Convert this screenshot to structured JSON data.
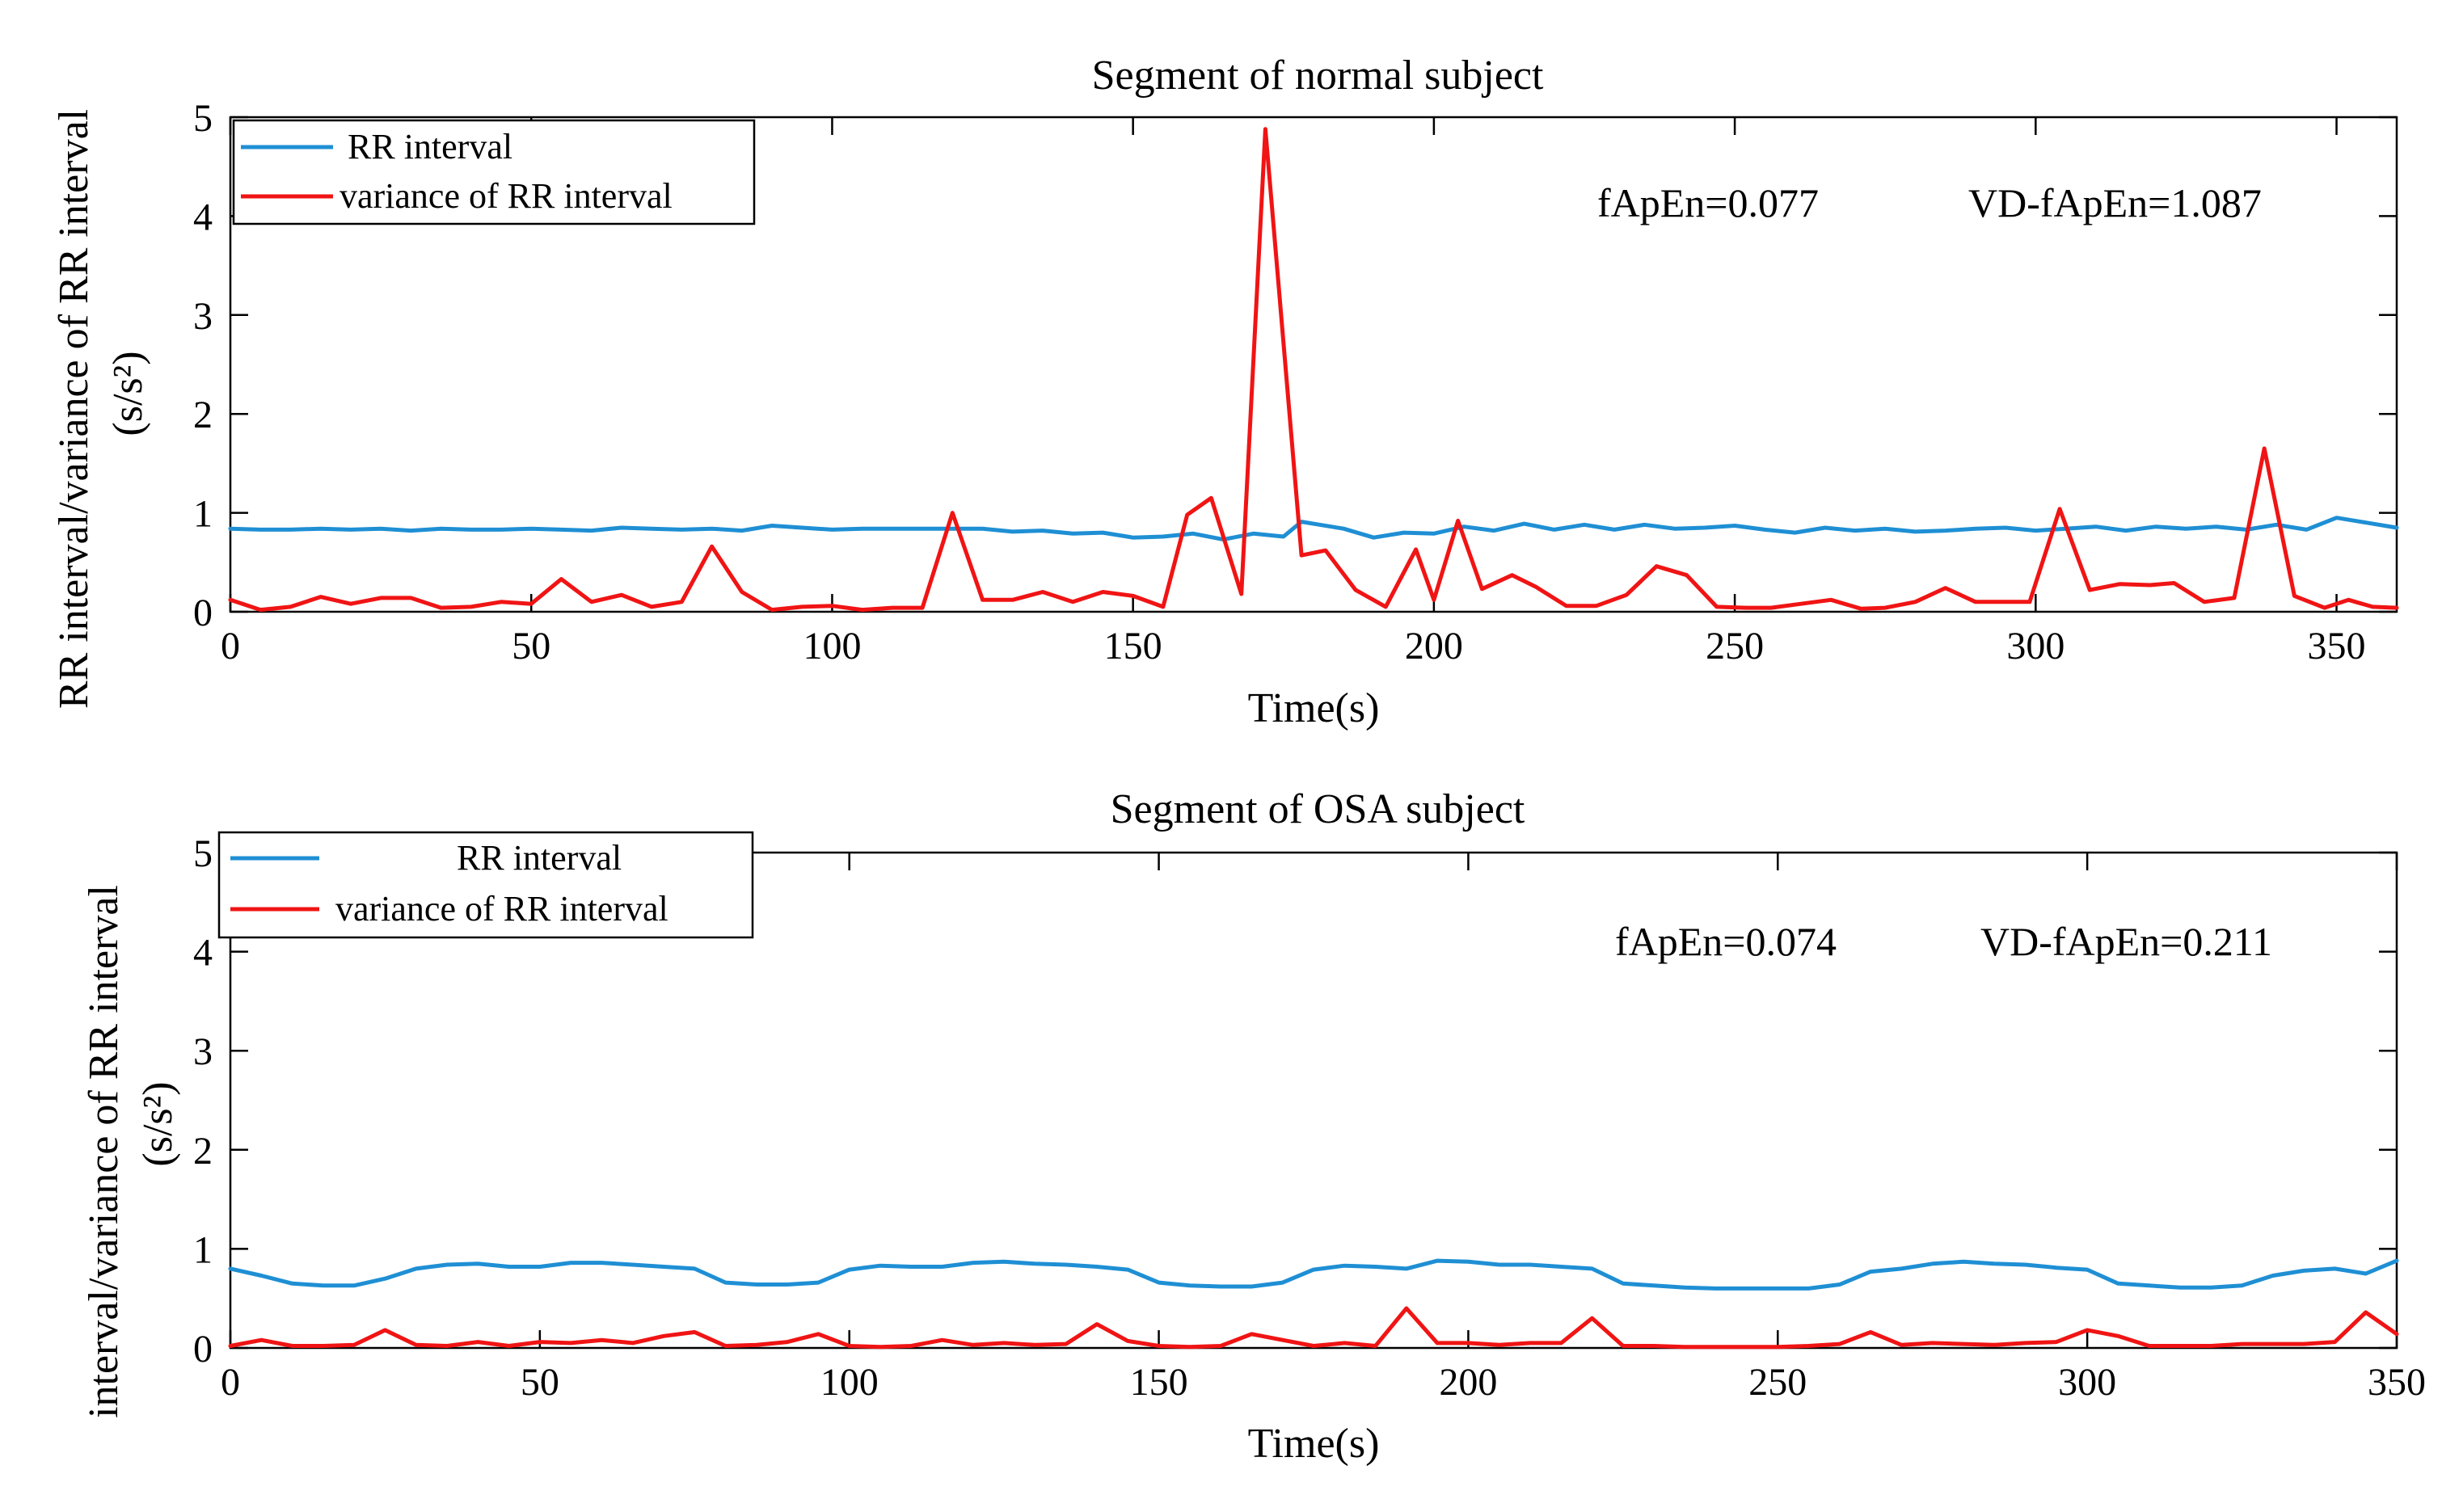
{
  "chart_data": [
    {
      "type": "line",
      "title": "Segment of normal subject",
      "xlabel": "Time(s)",
      "ylabel": "RR interval/variance of RR interval",
      "ylabel_unit": "(s/s²)",
      "xlim": [
        0,
        360
      ],
      "ylim": [
        0,
        5
      ],
      "xticks": [
        0,
        50,
        100,
        150,
        200,
        250,
        300,
        350
      ],
      "yticks": [
        0,
        1,
        2,
        3,
        4,
        5
      ],
      "legend_position": "top-left",
      "annotations": [
        "fApEn=0.077",
        "VD-fApEn=1.087"
      ],
      "colors": {
        "rr": "#1f8fd4",
        "var": "#f01414"
      },
      "series": [
        {
          "name": "RR interval",
          "x": [
            0,
            5,
            10,
            15,
            20,
            25,
            30,
            35,
            40,
            45,
            50,
            55,
            60,
            65,
            70,
            75,
            80,
            85,
            90,
            95,
            100,
            105,
            110,
            115,
            120,
            125,
            130,
            135,
            140,
            145,
            150,
            155,
            160,
            165,
            170,
            175,
            178,
            181,
            185,
            190,
            195,
            200,
            205,
            210,
            215,
            220,
            225,
            230,
            235,
            240,
            245,
            250,
            255,
            260,
            265,
            270,
            275,
            280,
            285,
            290,
            295,
            300,
            305,
            310,
            315,
            320,
            325,
            330,
            335,
            340,
            345,
            350,
            355,
            360
          ],
          "values": [
            0.84,
            0.83,
            0.83,
            0.84,
            0.83,
            0.84,
            0.82,
            0.84,
            0.83,
            0.83,
            0.84,
            0.83,
            0.82,
            0.85,
            0.84,
            0.83,
            0.84,
            0.82,
            0.87,
            0.85,
            0.83,
            0.84,
            0.84,
            0.84,
            0.84,
            0.84,
            0.81,
            0.82,
            0.79,
            0.8,
            0.75,
            0.76,
            0.79,
            0.73,
            0.79,
            0.76,
            0.91,
            0.88,
            0.84,
            0.75,
            0.8,
            0.79,
            0.86,
            0.82,
            0.89,
            0.83,
            0.88,
            0.83,
            0.88,
            0.84,
            0.85,
            0.87,
            0.83,
            0.8,
            0.85,
            0.82,
            0.84,
            0.81,
            0.82,
            0.84,
            0.85,
            0.82,
            0.84,
            0.86,
            0.82,
            0.86,
            0.84,
            0.86,
            0.83,
            0.88,
            0.83,
            0.95,
            0.9,
            0.85
          ]
        },
        {
          "name": "variance of RR interval",
          "x": [
            0,
            5,
            10,
            15,
            20,
            25,
            30,
            35,
            40,
            45,
            50,
            55,
            60,
            65,
            70,
            75,
            80,
            85,
            90,
            95,
            100,
            105,
            110,
            115,
            120,
            125,
            130,
            135,
            140,
            145,
            150,
            155,
            159,
            163,
            168,
            172,
            178,
            182,
            187,
            192,
            197,
            200,
            204,
            208,
            213,
            217,
            222,
            227,
            232,
            237,
            242,
            247,
            252,
            256,
            261,
            266,
            271,
            275,
            280,
            285,
            290,
            294,
            299,
            304,
            309,
            314,
            319,
            323,
            328,
            333,
            338,
            343,
            348,
            352,
            356,
            360
          ],
          "values": [
            0.12,
            0.02,
            0.05,
            0.15,
            0.08,
            0.14,
            0.14,
            0.04,
            0.05,
            0.1,
            0.08,
            0.33,
            0.1,
            0.17,
            0.05,
            0.1,
            0.66,
            0.2,
            0.02,
            0.05,
            0.06,
            0.02,
            0.04,
            0.04,
            1.0,
            0.12,
            0.12,
            0.2,
            0.1,
            0.2,
            0.16,
            0.05,
            0.98,
            1.15,
            0.18,
            4.88,
            0.57,
            0.62,
            0.22,
            0.05,
            0.63,
            0.12,
            0.92,
            0.23,
            0.37,
            0.25,
            0.06,
            0.06,
            0.17,
            0.46,
            0.37,
            0.05,
            0.04,
            0.04,
            0.08,
            0.12,
            0.03,
            0.04,
            0.1,
            0.24,
            0.1,
            0.1,
            0.1,
            1.04,
            0.22,
            0.28,
            0.27,
            0.29,
            0.1,
            0.14,
            1.65,
            0.16,
            0.04,
            0.12,
            0.05,
            0.04
          ]
        }
      ]
    },
    {
      "type": "line",
      "title": "Segment of OSA subject",
      "xlabel": "Time(s)",
      "ylabel": "interval/variance of RR interval",
      "ylabel_unit": "(s/s²)",
      "xlim": [
        0,
        350
      ],
      "ylim": [
        0,
        5
      ],
      "xticks": [
        0,
        50,
        100,
        150,
        200,
        250,
        300,
        350
      ],
      "yticks": [
        0,
        1,
        2,
        3,
        4,
        5
      ],
      "legend_position": "top-left",
      "annotations": [
        "fApEn=0.074",
        "VD-fApEn=0.211"
      ],
      "colors": {
        "rr": "#1f8fd4",
        "var": "#f01414"
      },
      "series": [
        {
          "name": "RR interval",
          "x": [
            0,
            5,
            10,
            15,
            20,
            25,
            30,
            35,
            40,
            45,
            50,
            55,
            60,
            65,
            70,
            75,
            80,
            85,
            90,
            95,
            100,
            105,
            110,
            115,
            120,
            125,
            130,
            135,
            140,
            145,
            150,
            155,
            160,
            165,
            170,
            175,
            180,
            185,
            190,
            195,
            200,
            205,
            210,
            215,
            220,
            225,
            230,
            235,
            240,
            245,
            250,
            255,
            260,
            265,
            270,
            275,
            280,
            285,
            290,
            295,
            300,
            305,
            310,
            315,
            320,
            325,
            330,
            335,
            340,
            345,
            350
          ],
          "values": [
            0.8,
            0.73,
            0.65,
            0.63,
            0.63,
            0.7,
            0.8,
            0.84,
            0.85,
            0.82,
            0.82,
            0.86,
            0.86,
            0.84,
            0.82,
            0.8,
            0.66,
            0.64,
            0.64,
            0.66,
            0.79,
            0.83,
            0.82,
            0.82,
            0.86,
            0.87,
            0.85,
            0.84,
            0.82,
            0.79,
            0.66,
            0.63,
            0.62,
            0.62,
            0.66,
            0.79,
            0.83,
            0.82,
            0.8,
            0.88,
            0.87,
            0.84,
            0.84,
            0.82,
            0.8,
            0.65,
            0.63,
            0.61,
            0.6,
            0.6,
            0.6,
            0.6,
            0.64,
            0.77,
            0.8,
            0.85,
            0.87,
            0.85,
            0.84,
            0.81,
            0.79,
            0.65,
            0.63,
            0.61,
            0.61,
            0.63,
            0.73,
            0.78,
            0.8,
            0.75,
            0.88
          ]
        },
        {
          "name": "variance of RR interval",
          "x": [
            0,
            5,
            10,
            15,
            20,
            25,
            30,
            35,
            40,
            45,
            50,
            55,
            60,
            65,
            70,
            75,
            80,
            85,
            90,
            95,
            100,
            105,
            110,
            115,
            120,
            125,
            130,
            135,
            140,
            145,
            150,
            155,
            160,
            165,
            170,
            175,
            180,
            185,
            190,
            195,
            200,
            205,
            210,
            215,
            220,
            225,
            230,
            235,
            240,
            245,
            250,
            255,
            260,
            265,
            270,
            275,
            280,
            285,
            290,
            295,
            300,
            305,
            310,
            315,
            320,
            325,
            330,
            335,
            340,
            345,
            350
          ],
          "values": [
            0.02,
            0.08,
            0.02,
            0.02,
            0.03,
            0.18,
            0.03,
            0.02,
            0.06,
            0.02,
            0.06,
            0.05,
            0.08,
            0.05,
            0.12,
            0.16,
            0.02,
            0.03,
            0.06,
            0.14,
            0.02,
            0.01,
            0.02,
            0.08,
            0.03,
            0.05,
            0.03,
            0.04,
            0.24,
            0.07,
            0.02,
            0.01,
            0.02,
            0.14,
            0.08,
            0.02,
            0.05,
            0.02,
            0.4,
            0.05,
            0.05,
            0.03,
            0.05,
            0.05,
            0.3,
            0.02,
            0.02,
            0.01,
            0.01,
            0.01,
            0.01,
            0.02,
            0.04,
            0.16,
            0.03,
            0.05,
            0.04,
            0.03,
            0.05,
            0.06,
            0.18,
            0.12,
            0.02,
            0.02,
            0.02,
            0.04,
            0.04,
            0.04,
            0.06,
            0.36,
            0.14
          ]
        }
      ]
    }
  ]
}
